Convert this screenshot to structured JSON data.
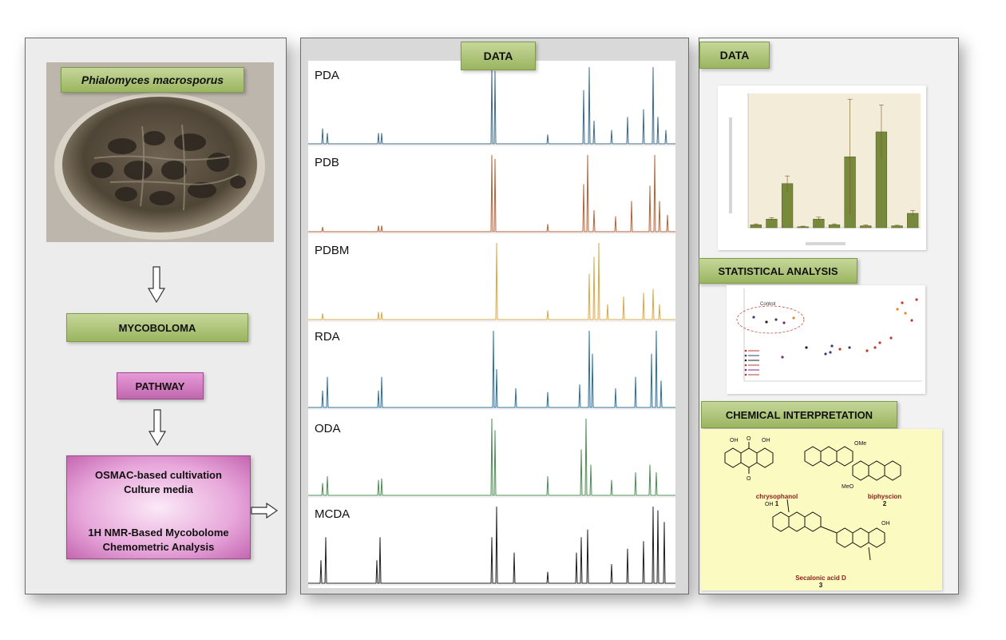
{
  "left": {
    "species": "Phialomyces macrosporus",
    "mycobolome_label": "MYCOBOLOMA",
    "pathway_label": "PATHWAY",
    "osmac": {
      "line1": "OSMAC-based cultivation",
      "line2": "Culture media",
      "line3": "1H NMR-Based Mycobolome",
      "line4": "Chemometric Analysis"
    }
  },
  "middle": {
    "title": "DATA",
    "spectra": [
      {
        "name": "PDA",
        "color": "#3d6a86"
      },
      {
        "name": "PDB",
        "color": "#b5623a"
      },
      {
        "name": "PDBM",
        "color": "#d9a84a"
      },
      {
        "name": "RDA",
        "color": "#2e6e96"
      },
      {
        "name": "ODA",
        "color": "#4d8c54"
      },
      {
        "name": "MCDA",
        "color": "#1f1f1f"
      }
    ]
  },
  "right": {
    "data_title": "DATA",
    "stat_title": "STATISTICAL  ANALYSIS",
    "chem_title": "CHEMICAL INTERPRETATION",
    "scatter": {
      "annotation": "Control",
      "point_colors": [
        "#3a3a7a",
        "#c0392b",
        "#e08a2a",
        "#7a2a7a",
        "#222222"
      ]
    },
    "compounds": [
      {
        "name": "chrysophanol",
        "number": "1"
      },
      {
        "name": "biphyscion",
        "number": "2"
      },
      {
        "name": "Secalonic acid D",
        "number": "3"
      }
    ]
  },
  "chart_data": {
    "type": "bar",
    "color": "#77893a",
    "values": [
      15,
      45,
      230,
      5,
      45,
      15,
      370,
      10,
      500,
      10,
      75
    ],
    "errors": [
      5,
      8,
      40,
      3,
      10,
      5,
      300,
      5,
      140,
      3,
      15
    ],
    "ylim": [
      0,
      700
    ]
  }
}
